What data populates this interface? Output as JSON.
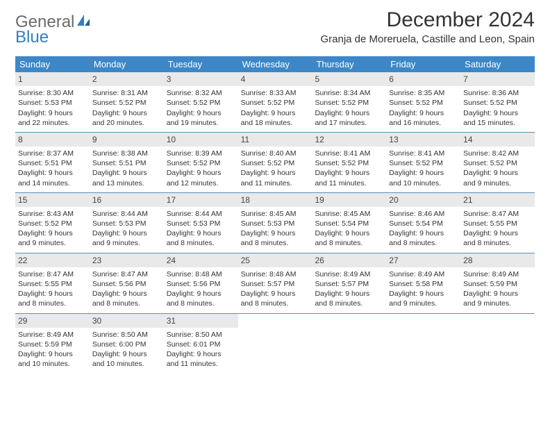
{
  "logo": {
    "text1": "General",
    "text2": "Blue"
  },
  "title": "December 2024",
  "location": "Granja de Moreruela, Castille and Leon, Spain",
  "colors": {
    "header_bg": "#3d87c7",
    "header_text": "#ffffff",
    "daynum_bg": "#e9e9e9",
    "week_border": "#5a8fb8",
    "body_text": "#333333",
    "logo_gray": "#6a6a6a",
    "logo_blue": "#2f7fc2"
  },
  "day_headers": [
    "Sunday",
    "Monday",
    "Tuesday",
    "Wednesday",
    "Thursday",
    "Friday",
    "Saturday"
  ],
  "weeks": [
    [
      {
        "n": "1",
        "sr": "8:30 AM",
        "ss": "5:53 PM",
        "dl": "9 hours and 22 minutes."
      },
      {
        "n": "2",
        "sr": "8:31 AM",
        "ss": "5:52 PM",
        "dl": "9 hours and 20 minutes."
      },
      {
        "n": "3",
        "sr": "8:32 AM",
        "ss": "5:52 PM",
        "dl": "9 hours and 19 minutes."
      },
      {
        "n": "4",
        "sr": "8:33 AM",
        "ss": "5:52 PM",
        "dl": "9 hours and 18 minutes."
      },
      {
        "n": "5",
        "sr": "8:34 AM",
        "ss": "5:52 PM",
        "dl": "9 hours and 17 minutes."
      },
      {
        "n": "6",
        "sr": "8:35 AM",
        "ss": "5:52 PM",
        "dl": "9 hours and 16 minutes."
      },
      {
        "n": "7",
        "sr": "8:36 AM",
        "ss": "5:52 PM",
        "dl": "9 hours and 15 minutes."
      }
    ],
    [
      {
        "n": "8",
        "sr": "8:37 AM",
        "ss": "5:51 PM",
        "dl": "9 hours and 14 minutes."
      },
      {
        "n": "9",
        "sr": "8:38 AM",
        "ss": "5:51 PM",
        "dl": "9 hours and 13 minutes."
      },
      {
        "n": "10",
        "sr": "8:39 AM",
        "ss": "5:52 PM",
        "dl": "9 hours and 12 minutes."
      },
      {
        "n": "11",
        "sr": "8:40 AM",
        "ss": "5:52 PM",
        "dl": "9 hours and 11 minutes."
      },
      {
        "n": "12",
        "sr": "8:41 AM",
        "ss": "5:52 PM",
        "dl": "9 hours and 11 minutes."
      },
      {
        "n": "13",
        "sr": "8:41 AM",
        "ss": "5:52 PM",
        "dl": "9 hours and 10 minutes."
      },
      {
        "n": "14",
        "sr": "8:42 AM",
        "ss": "5:52 PM",
        "dl": "9 hours and 9 minutes."
      }
    ],
    [
      {
        "n": "15",
        "sr": "8:43 AM",
        "ss": "5:52 PM",
        "dl": "9 hours and 9 minutes."
      },
      {
        "n": "16",
        "sr": "8:44 AM",
        "ss": "5:53 PM",
        "dl": "9 hours and 9 minutes."
      },
      {
        "n": "17",
        "sr": "8:44 AM",
        "ss": "5:53 PM",
        "dl": "9 hours and 8 minutes."
      },
      {
        "n": "18",
        "sr": "8:45 AM",
        "ss": "5:53 PM",
        "dl": "9 hours and 8 minutes."
      },
      {
        "n": "19",
        "sr": "8:45 AM",
        "ss": "5:54 PM",
        "dl": "9 hours and 8 minutes."
      },
      {
        "n": "20",
        "sr": "8:46 AM",
        "ss": "5:54 PM",
        "dl": "9 hours and 8 minutes."
      },
      {
        "n": "21",
        "sr": "8:47 AM",
        "ss": "5:55 PM",
        "dl": "9 hours and 8 minutes."
      }
    ],
    [
      {
        "n": "22",
        "sr": "8:47 AM",
        "ss": "5:55 PM",
        "dl": "9 hours and 8 minutes."
      },
      {
        "n": "23",
        "sr": "8:47 AM",
        "ss": "5:56 PM",
        "dl": "9 hours and 8 minutes."
      },
      {
        "n": "24",
        "sr": "8:48 AM",
        "ss": "5:56 PM",
        "dl": "9 hours and 8 minutes."
      },
      {
        "n": "25",
        "sr": "8:48 AM",
        "ss": "5:57 PM",
        "dl": "9 hours and 8 minutes."
      },
      {
        "n": "26",
        "sr": "8:49 AM",
        "ss": "5:57 PM",
        "dl": "9 hours and 8 minutes."
      },
      {
        "n": "27",
        "sr": "8:49 AM",
        "ss": "5:58 PM",
        "dl": "9 hours and 9 minutes."
      },
      {
        "n": "28",
        "sr": "8:49 AM",
        "ss": "5:59 PM",
        "dl": "9 hours and 9 minutes."
      }
    ],
    [
      {
        "n": "29",
        "sr": "8:49 AM",
        "ss": "5:59 PM",
        "dl": "9 hours and 10 minutes."
      },
      {
        "n": "30",
        "sr": "8:50 AM",
        "ss": "6:00 PM",
        "dl": "9 hours and 10 minutes."
      },
      {
        "n": "31",
        "sr": "8:50 AM",
        "ss": "6:01 PM",
        "dl": "9 hours and 11 minutes."
      },
      {
        "empty": true
      },
      {
        "empty": true
      },
      {
        "empty": true
      },
      {
        "empty": true
      }
    ]
  ],
  "labels": {
    "sunrise": "Sunrise: ",
    "sunset": "Sunset: ",
    "daylight": "Daylight: "
  }
}
